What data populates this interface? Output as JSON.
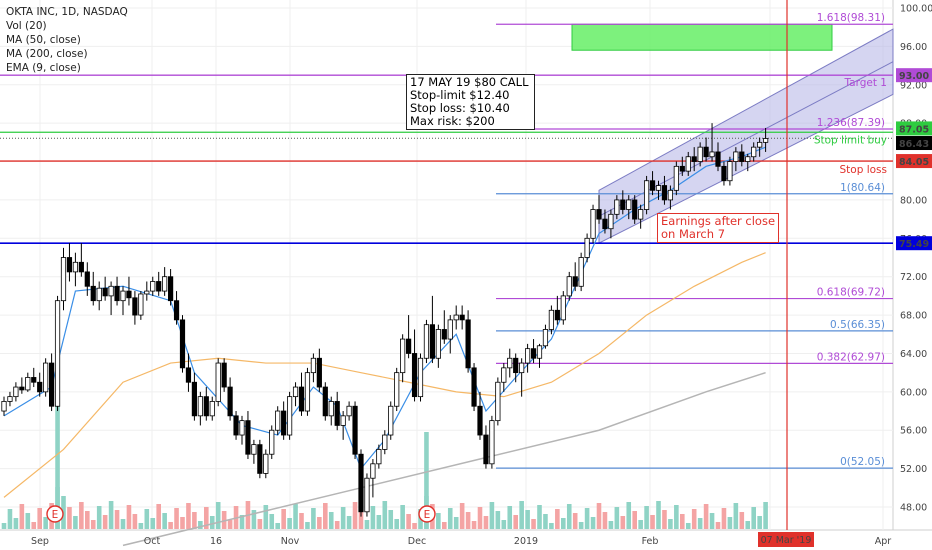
{
  "legend": {
    "symbol": "OKTA INC, 1D, NASDAQ",
    "vol": "Vol (20)",
    "ma50": "MA (50, close)",
    "ma200": "MA (200, close)",
    "ema9": "EMA (9, close)"
  },
  "note": {
    "line1": "17 MAY 19 $80 CALL",
    "line2": "Stop-limit $12.40",
    "line3": "Stop loss: $10.40",
    "line4": "Max risk: $200"
  },
  "earnings_note": {
    "line1": "Earnings after close",
    "line2": "on March 7"
  },
  "earnings_marker": "E",
  "crosshair_date": "07 Mar '19",
  "colors": {
    "up": "#ffffff",
    "down": "#000000",
    "vol_up": "#8fd3c5",
    "vol_down": "#f4a4a4",
    "ema9": "#3a8ee6",
    "ma50": "#f5b867",
    "ma200": "#b5b5b5",
    "fib": "#b04bd6",
    "fib_blue": "#5a8ed6",
    "green": "#2ecc40",
    "red": "#e0312b",
    "blue_line": "#0000dd"
  },
  "chart_data": {
    "type": "candlestick",
    "ylim": [
      46,
      101
    ],
    "y_ticks": [
      "48.00",
      "52.00",
      "56.00",
      "60.00",
      "64.00",
      "68.00",
      "72.00",
      "76.00",
      "80.00",
      "84.00",
      "88.00",
      "92.00",
      "96.00",
      "100.00"
    ],
    "x_ticks": [
      "Sep",
      "Oct",
      "16",
      "Nov",
      "Dec",
      "2019",
      "Feb",
      "Mar",
      "Apr"
    ],
    "price_labels": [
      {
        "name": "target",
        "value": 93.0,
        "text": "93.00"
      },
      {
        "name": "stop-limit",
        "value": 87.05,
        "text": "87.05"
      },
      {
        "name": "last",
        "value": 86.43,
        "text": "86.43"
      },
      {
        "name": "stop-loss",
        "value": 84.05,
        "text": "84.05"
      },
      {
        "name": "support",
        "value": 75.49,
        "text": "75.49"
      }
    ],
    "horizontal_lines": [
      {
        "name": "target-1",
        "value": 93.0,
        "label": "Target 1"
      },
      {
        "name": "stop-limit-buy",
        "value": 87.05,
        "label": "Stop limit buy"
      },
      {
        "name": "stop-loss",
        "value": 84.05,
        "label": "Stop loss"
      },
      {
        "name": "support-75",
        "value": 75.49,
        "label": ""
      }
    ],
    "fib_levels": [
      {
        "value": 98.31,
        "label": "1.618(98.31)"
      },
      {
        "value": 87.39,
        "label": "1.236(87.39)"
      },
      {
        "value": 80.64,
        "label": "1(80.64)"
      },
      {
        "value": 69.72,
        "label": "0.618(69.72)"
      },
      {
        "value": 66.35,
        "label": "0.5(66.35)"
      },
      {
        "value": 62.97,
        "label": "0.382(62.97)"
      },
      {
        "value": 52.05,
        "label": "0(52.05)"
      }
    ],
    "candles": [
      [
        58.0,
        59.5,
        57.5,
        59.0
      ],
      [
        59.0,
        60.0,
        58.5,
        59.5
      ],
      [
        59.5,
        61.0,
        59.0,
        60.5
      ],
      [
        60.5,
        61.5,
        59.8,
        60.2
      ],
      [
        60.2,
        62.0,
        60.0,
        61.5
      ],
      [
        61.5,
        62.5,
        60.5,
        61.0
      ],
      [
        61.0,
        62.0,
        59.5,
        60.0
      ],
      [
        60.0,
        63.5,
        59.5,
        63.0
      ],
      [
        63.0,
        64.0,
        58.0,
        58.5
      ],
      [
        58.5,
        70.0,
        58.0,
        69.5
      ],
      [
        69.5,
        75.0,
        68.5,
        74.0
      ],
      [
        74.0,
        75.5,
        71.5,
        72.5
      ],
      [
        72.5,
        74.5,
        71.0,
        73.5
      ],
      [
        73.5,
        75.5,
        72.0,
        72.5
      ],
      [
        72.5,
        73.5,
        70.0,
        71.0
      ],
      [
        71.0,
        72.5,
        69.0,
        69.5
      ],
      [
        69.5,
        71.5,
        68.5,
        70.8
      ],
      [
        70.8,
        72.0,
        69.5,
        70.0
      ],
      [
        70.0,
        71.5,
        68.0,
        71.0
      ],
      [
        71.0,
        72.0,
        69.0,
        69.5
      ],
      [
        69.5,
        71.0,
        68.0,
        70.5
      ],
      [
        70.5,
        72.0,
        69.0,
        69.8
      ],
      [
        69.8,
        70.5,
        67.0,
        68.0
      ],
      [
        68.0,
        70.5,
        67.5,
        70.2
      ],
      [
        70.2,
        71.5,
        69.5,
        70.5
      ],
      [
        70.5,
        72.0,
        70.0,
        71.5
      ],
      [
        71.5,
        72.5,
        70.0,
        70.5
      ],
      [
        70.5,
        73.0,
        70.0,
        72.0
      ],
      [
        72.0,
        72.8,
        69.0,
        69.5
      ],
      [
        69.5,
        70.5,
        67.0,
        67.5
      ],
      [
        67.5,
        68.0,
        62.0,
        62.5
      ],
      [
        62.5,
        64.0,
        60.0,
        61.0
      ],
      [
        61.0,
        62.0,
        57.0,
        57.5
      ],
      [
        57.5,
        60.0,
        56.5,
        59.5
      ],
      [
        59.5,
        60.5,
        57.0,
        57.5
      ],
      [
        57.5,
        59.5,
        57.0,
        59.0
      ],
      [
        59.0,
        63.5,
        58.5,
        63.0
      ],
      [
        63.0,
        63.5,
        60.0,
        60.5
      ],
      [
        60.5,
        61.5,
        57.0,
        57.5
      ],
      [
        57.5,
        58.0,
        55.0,
        55.5
      ],
      [
        55.5,
        57.5,
        54.5,
        57.0
      ],
      [
        57.0,
        58.0,
        53.0,
        53.5
      ],
      [
        53.5,
        55.0,
        52.5,
        54.5
      ],
      [
        54.5,
        55.0,
        51.0,
        51.5
      ],
      [
        51.5,
        54.0,
        51.0,
        53.5
      ],
      [
        53.5,
        56.5,
        53.0,
        56.0
      ],
      [
        56.0,
        58.5,
        55.5,
        58.0
      ],
      [
        58.0,
        59.0,
        55.0,
        55.5
      ],
      [
        55.5,
        60.0,
        55.0,
        59.5
      ],
      [
        59.5,
        61.0,
        58.5,
        60.5
      ],
      [
        60.5,
        62.0,
        57.5,
        58.0
      ],
      [
        58.0,
        62.5,
        57.5,
        62.0
      ],
      [
        62.0,
        64.0,
        61.0,
        63.5
      ],
      [
        63.5,
        64.5,
        60.0,
        60.5
      ],
      [
        60.5,
        61.0,
        57.0,
        57.5
      ],
      [
        57.5,
        59.5,
        56.5,
        59.0
      ],
      [
        59.0,
        60.0,
        56.0,
        56.5
      ],
      [
        56.5,
        58.0,
        55.0,
        57.5
      ],
      [
        57.5,
        59.0,
        57.0,
        58.5
      ],
      [
        58.5,
        59.0,
        53.0,
        53.5
      ],
      [
        53.5,
        54.0,
        47.0,
        47.5
      ],
      [
        47.5,
        51.5,
        47.0,
        51.0
      ],
      [
        51.0,
        53.0,
        49.0,
        52.5
      ],
      [
        52.5,
        54.5,
        52.0,
        54.0
      ],
      [
        54.0,
        56.0,
        53.5,
        55.5
      ],
      [
        55.5,
        59.0,
        55.0,
        58.5
      ],
      [
        58.5,
        62.5,
        58.0,
        62.0
      ],
      [
        62.0,
        66.0,
        61.0,
        65.5
      ],
      [
        65.5,
        68.0,
        63.5,
        64.0
      ],
      [
        64.0,
        66.5,
        59.0,
        59.5
      ],
      [
        59.5,
        64.0,
        59.0,
        63.5
      ],
      [
        63.5,
        67.5,
        63.0,
        67.0
      ],
      [
        67.0,
        70.0,
        63.0,
        63.5
      ],
      [
        63.5,
        67.0,
        62.5,
        66.5
      ],
      [
        66.5,
        68.5,
        65.0,
        65.5
      ],
      [
        65.5,
        68.0,
        64.0,
        67.5
      ],
      [
        67.5,
        69.0,
        66.5,
        68.0
      ],
      [
        68.0,
        69.0,
        66.5,
        67.5
      ],
      [
        67.5,
        68.5,
        62.0,
        62.5
      ],
      [
        62.5,
        63.0,
        58.0,
        58.5
      ],
      [
        58.5,
        60.0,
        55.0,
        55.5
      ],
      [
        55.5,
        56.5,
        52.0,
        52.5
      ],
      [
        52.5,
        57.5,
        52.0,
        57.0
      ],
      [
        57.0,
        61.5,
        56.5,
        61.0
      ],
      [
        61.0,
        63.0,
        60.0,
        62.5
      ],
      [
        62.5,
        64.5,
        61.5,
        63.5
      ],
      [
        63.5,
        64.0,
        61.0,
        62.0
      ],
      [
        62.0,
        63.5,
        59.5,
        63.0
      ],
      [
        63.0,
        65.0,
        62.0,
        64.5
      ],
      [
        64.5,
        65.5,
        63.0,
        63.5
      ],
      [
        63.5,
        65.0,
        62.5,
        64.8
      ],
      [
        64.8,
        67.0,
        64.5,
        66.5
      ],
      [
        66.5,
        69.0,
        66.0,
        68.5
      ],
      [
        68.5,
        70.0,
        67.0,
        67.5
      ],
      [
        67.5,
        70.5,
        67.0,
        70.0
      ],
      [
        70.0,
        72.5,
        69.5,
        72.0
      ],
      [
        72.0,
        73.5,
        70.5,
        71.0
      ],
      [
        71.0,
        74.5,
        70.5,
        74.0
      ],
      [
        74.0,
        76.5,
        73.5,
        76.0
      ],
      [
        76.0,
        79.5,
        75.5,
        79.0
      ],
      [
        79.0,
        80.5,
        77.5,
        78.0
      ],
      [
        78.0,
        79.0,
        76.5,
        77.0
      ],
      [
        77.0,
        79.0,
        76.0,
        78.5
      ],
      [
        78.5,
        80.5,
        78.0,
        80.0
      ],
      [
        80.0,
        81.0,
        78.5,
        79.0
      ],
      [
        79.0,
        80.5,
        78.0,
        80.0
      ],
      [
        80.0,
        80.5,
        77.5,
        78.0
      ],
      [
        78.0,
        79.5,
        77.0,
        79.0
      ],
      [
        79.0,
        82.5,
        78.5,
        82.0
      ],
      [
        82.0,
        83.0,
        80.5,
        81.0
      ],
      [
        81.0,
        82.0,
        80.0,
        81.5
      ],
      [
        81.5,
        82.5,
        79.5,
        80.0
      ],
      [
        80.0,
        81.5,
        79.0,
        81.0
      ],
      [
        81.0,
        84.0,
        80.5,
        83.5
      ],
      [
        83.5,
        84.5,
        82.5,
        83.0
      ],
      [
        83.0,
        85.0,
        82.5,
        84.5
      ],
      [
        84.5,
        85.5,
        83.0,
        84.0
      ],
      [
        84.0,
        86.0,
        83.5,
        85.5
      ],
      [
        85.5,
        86.5,
        84.0,
        84.5
      ],
      [
        84.5,
        88.0,
        84.0,
        85.0
      ],
      [
        85.0,
        86.0,
        83.0,
        83.5
      ],
      [
        83.5,
        84.0,
        81.5,
        82.0
      ],
      [
        82.0,
        84.5,
        81.5,
        84.0
      ],
      [
        84.0,
        85.5,
        83.0,
        85.0
      ],
      [
        85.0,
        85.8,
        83.5,
        84.0
      ],
      [
        84.0,
        84.8,
        83.0,
        84.5
      ],
      [
        84.5,
        86.0,
        84.0,
        85.5
      ],
      [
        85.5,
        86.5,
        84.5,
        86.0
      ],
      [
        86.0,
        87.5,
        85.0,
        86.4
      ]
    ],
    "volume_up": [
      0.45,
      0.35,
      0.3,
      0.25,
      0.4,
      0.2,
      0.3,
      0.35,
      0.3,
      1.0,
      0.9,
      0.5,
      0.35,
      0.3,
      0.25,
      0.3,
      0.28,
      0.3,
      0.3,
      0.25,
      0.3,
      0.25,
      0.3,
      0.28,
      0.25,
      0.3,
      0.25,
      0.35,
      0.3,
      0.3
    ],
    "ema9": [
      [
        0,
        57.5
      ],
      [
        8,
        60.5
      ],
      [
        12,
        70.5
      ],
      [
        20,
        71
      ],
      [
        28,
        69.5
      ],
      [
        32,
        62
      ],
      [
        40,
        56.5
      ],
      [
        46,
        55.5
      ],
      [
        52,
        60.5
      ],
      [
        56,
        58.5
      ],
      [
        60,
        52
      ],
      [
        64,
        55
      ],
      [
        70,
        62
      ],
      [
        76,
        66
      ],
      [
        81,
        58
      ],
      [
        86,
        61.5
      ],
      [
        92,
        65.5
      ],
      [
        96,
        71
      ],
      [
        100,
        76.5
      ],
      [
        106,
        79
      ],
      [
        112,
        81
      ],
      [
        118,
        83.5
      ],
      [
        124,
        84.5
      ],
      [
        128,
        85.5
      ]
    ],
    "ma50": [
      [
        0,
        49
      ],
      [
        10,
        54
      ],
      [
        20,
        61
      ],
      [
        28,
        63
      ],
      [
        36,
        63.5
      ],
      [
        44,
        63
      ],
      [
        52,
        63
      ],
      [
        60,
        62
      ],
      [
        68,
        61
      ],
      [
        76,
        60
      ],
      [
        84,
        59.5
      ],
      [
        92,
        61
      ],
      [
        100,
        64
      ],
      [
        108,
        68
      ],
      [
        116,
        71
      ],
      [
        124,
        73.5
      ],
      [
        128,
        74.5
      ]
    ],
    "ma200": [
      [
        20,
        44
      ],
      [
        40,
        47
      ],
      [
        60,
        50
      ],
      [
        80,
        53
      ],
      [
        100,
        56
      ],
      [
        118,
        60
      ],
      [
        128,
        62
      ]
    ]
  }
}
